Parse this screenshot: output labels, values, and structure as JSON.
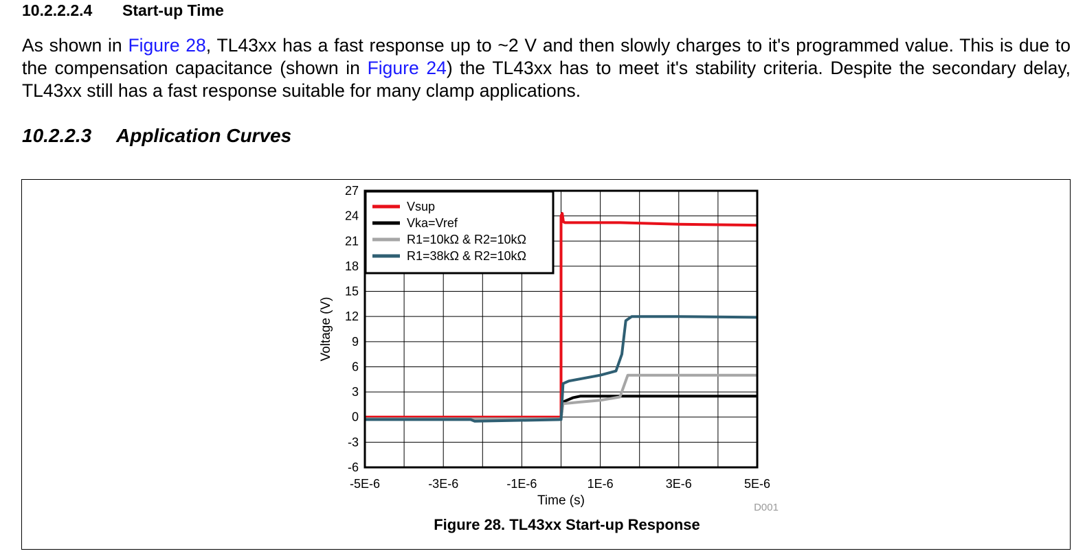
{
  "section_4": {
    "number": "10.2.2.2.4",
    "title": "Start-up Time"
  },
  "paragraph": {
    "t1": "As shown in ",
    "link1": "Figure 28",
    "t2": ", TL43xx has a fast response up to ~2 V and then slowly charges to it's programmed value. This is due to the compensation capacitance (shown in ",
    "link2": "Figure 24",
    "t3": ") the TL43xx has to meet it's stability criteria. Despite the secondary delay, TL43xx still has a fast response suitable for many clamp applications."
  },
  "section_3": {
    "number": "10.2.2.3",
    "title": "Application Curves"
  },
  "figure": {
    "caption": "Figure 28. TL43xx Start-up Response",
    "id_tag": "D001"
  },
  "chart_data": {
    "type": "line",
    "xlabel": "Time (s)",
    "ylabel": "Voltage (V)",
    "xlim": [
      -5e-06,
      5e-06
    ],
    "ylim": [
      -6,
      27
    ],
    "x_ticks": [
      "-5E-6",
      "-3E-6",
      "-1E-6",
      "1E-6",
      "3E-6",
      "5E-6"
    ],
    "y_ticks": [
      "27",
      "24",
      "21",
      "18",
      "15",
      "12",
      "9",
      "6",
      "3",
      "0",
      "-3",
      "-6"
    ],
    "grid": true,
    "legend_position": "top-left",
    "series": [
      {
        "name": "Vsup",
        "color": "#e8101a",
        "x": [
          -5e-06,
          0,
          0,
          3e-08,
          6e-08,
          1e-07,
          5e-07,
          1.5e-06,
          3e-06,
          5e-06
        ],
        "y": [
          0,
          0,
          24,
          24.3,
          23.3,
          23.2,
          23.2,
          23.2,
          23.0,
          22.9
        ]
      },
      {
        "name": "Vka=Vref",
        "color": "#000000",
        "x": [
          -5e-06,
          0,
          5e-08,
          3e-07,
          5e-07,
          1e-06,
          5e-06
        ],
        "y": [
          -0.2,
          -0.2,
          1.8,
          2.3,
          2.5,
          2.5,
          2.5
        ]
      },
      {
        "name": "R1=10kΩ & R2=10kΩ",
        "color": "#a6a6a6",
        "x": [
          -5e-06,
          0,
          5e-08,
          5e-07,
          1e-06,
          1.5e-06,
          1.7e-06,
          5e-06
        ],
        "y": [
          -0.2,
          -0.2,
          1.6,
          1.8,
          2.0,
          2.4,
          5.0,
          5.0
        ]
      },
      {
        "name": "R1=38kΩ & R2=10kΩ",
        "color": "#2f5f73",
        "x": [
          -5e-06,
          -2.3e-06,
          -2.2e-06,
          0,
          5e-08,
          2e-07,
          1e-06,
          1.4e-06,
          1.55e-06,
          1.65e-06,
          1.8e-06,
          3e-06,
          5e-06
        ],
        "y": [
          -0.3,
          -0.3,
          -0.5,
          -0.3,
          4.0,
          4.3,
          5.0,
          5.5,
          7.5,
          11.5,
          12.0,
          12.0,
          11.9
        ]
      }
    ]
  }
}
